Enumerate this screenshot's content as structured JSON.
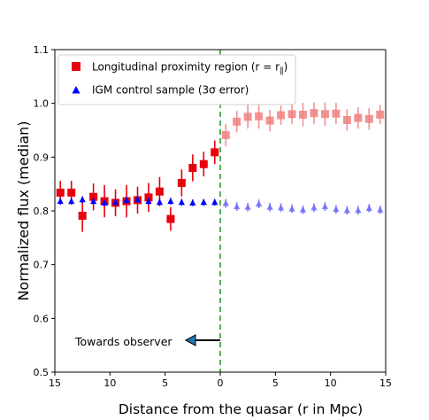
{
  "chart_data": {
    "type": "scatter",
    "xlabel": "Distance from the quasar (r in Mpc)",
    "ylabel": "Normalized flux (median)",
    "xlim": [
      -15,
      15
    ],
    "ylim": [
      0.5,
      1.1
    ],
    "x_ticks": [
      -15,
      -10,
      -5,
      0,
      5,
      10,
      15
    ],
    "x_tick_labels": [
      "15",
      "10",
      "5",
      "0",
      "5",
      "10",
      "15"
    ],
    "y_ticks": [
      0.5,
      0.6,
      0.7,
      0.8,
      0.9,
      1.0,
      1.1
    ],
    "y_tick_labels": [
      "0.5",
      "0.6",
      "0.7",
      "0.8",
      "0.9",
      "1.0",
      "1.1"
    ],
    "grid": false,
    "legend_position": "top-left",
    "series": [
      {
        "name": "Longitudinal proximity region  (r = r",
        "name_subscript": "∥",
        "name_suffix": ")",
        "marker": "square",
        "color": "#e8000b",
        "faded_color": "#f08080",
        "x": [
          -14.5,
          -13.5,
          -12.5,
          -11.5,
          -10.5,
          -9.5,
          -8.5,
          -7.5,
          -6.5,
          -5.5,
          -4.5,
          -3.5,
          -2.5,
          -1.5,
          -0.5,
          0.5,
          1.5,
          2.5,
          3.5,
          4.5,
          5.5,
          6.5,
          7.5,
          8.5,
          9.5,
          10.5,
          11.5,
          12.5,
          13.5,
          14.5
        ],
        "y": [
          0.834,
          0.834,
          0.791,
          0.826,
          0.818,
          0.815,
          0.818,
          0.82,
          0.825,
          0.836,
          0.785,
          0.852,
          0.88,
          0.887,
          0.909,
          0.941,
          0.966,
          0.975,
          0.976,
          0.968,
          0.978,
          0.98,
          0.979,
          0.982,
          0.98,
          0.981,
          0.969,
          0.973,
          0.971,
          0.979
        ],
        "err": [
          0.022,
          0.022,
          0.03,
          0.025,
          0.03,
          0.025,
          0.03,
          0.025,
          0.027,
          0.027,
          0.022,
          0.025,
          0.025,
          0.023,
          0.022,
          0.021,
          0.02,
          0.022,
          0.023,
          0.02,
          0.018,
          0.018,
          0.022,
          0.02,
          0.022,
          0.02,
          0.02,
          0.02,
          0.02,
          0.018
        ]
      },
      {
        "name": "IGM control sample (3σ error)",
        "marker": "triangle",
        "color": "#0000ff",
        "faded_color": "#6a6aff",
        "x": [
          -14.5,
          -13.5,
          -12.5,
          -11.5,
          -10.5,
          -9.5,
          -8.5,
          -7.5,
          -6.5,
          -5.5,
          -4.5,
          -3.5,
          -2.5,
          -1.5,
          -0.5,
          0.5,
          1.5,
          2.5,
          3.5,
          4.5,
          5.5,
          6.5,
          7.5,
          8.5,
          9.5,
          10.5,
          11.5,
          12.5,
          13.5,
          14.5
        ],
        "y": [
          0.818,
          0.818,
          0.821,
          0.818,
          0.815,
          0.816,
          0.82,
          0.821,
          0.818,
          0.816,
          0.818,
          0.816,
          0.815,
          0.816,
          0.816,
          0.814,
          0.808,
          0.807,
          0.813,
          0.807,
          0.806,
          0.804,
          0.802,
          0.806,
          0.808,
          0.803,
          0.801,
          0.801,
          0.805,
          0.802
        ],
        "err": [
          0.006,
          0.006,
          0.006,
          0.006,
          0.006,
          0.006,
          0.006,
          0.006,
          0.006,
          0.006,
          0.006,
          0.006,
          0.006,
          0.006,
          0.006,
          0.008,
          0.008,
          0.008,
          0.008,
          0.008,
          0.008,
          0.008,
          0.008,
          0.008,
          0.008,
          0.008,
          0.008,
          0.008,
          0.008,
          0.008
        ]
      }
    ],
    "vline": {
      "x": 0,
      "color": "#2ca02c",
      "style": "dashed"
    },
    "annotation": {
      "text": "Towards observer",
      "arrow": "left",
      "arrow_color": "#1f77b4"
    }
  }
}
